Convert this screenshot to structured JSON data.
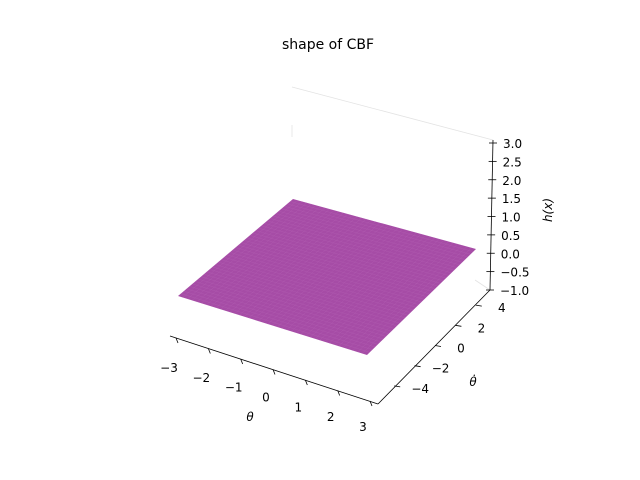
{
  "chart_data": {
    "type": "surface3d",
    "title": "shape of CBF",
    "xlabel": "θ",
    "ylabel": "θ̇",
    "zlabel": "h(x)",
    "x_ticks": [
      "−3",
      "−2",
      "−1",
      "0",
      "1",
      "2",
      "3"
    ],
    "y_ticks": [
      "−4",
      "−2",
      "0",
      "2",
      "4"
    ],
    "z_ticks": [
      "−1.0",
      "−0.5",
      "0.0",
      "0.5",
      "1.0",
      "1.5",
      "2.0",
      "2.5",
      "3.0"
    ],
    "xlim": [
      -3.14,
      3.14
    ],
    "ylim": [
      -5,
      5
    ],
    "zlim": [
      -1,
      3
    ],
    "surface_color": "#a64ca6",
    "surface": {
      "description_value": 0.0,
      "corners": [
        {
          "x": -3.14,
          "y": -5,
          "z": 0.0
        },
        {
          "x": 3.14,
          "y": -5,
          "z": 0.0
        },
        {
          "x": 3.14,
          "y": 5,
          "z": 0.0
        },
        {
          "x": -3.14,
          "y": 5,
          "z": 0.0
        }
      ]
    }
  }
}
